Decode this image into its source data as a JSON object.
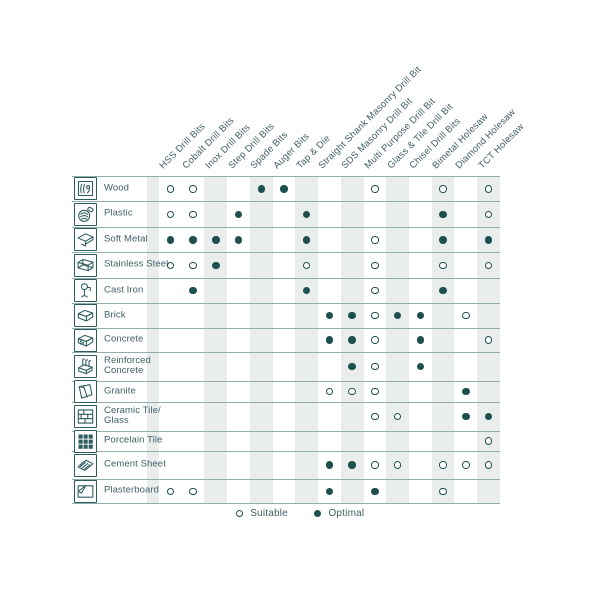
{
  "chart_data": {
    "type": "table",
    "title": "Drill bit / material compatibility matrix",
    "columns": [
      "HSS Drill Bits",
      "Cobalt Drill Bits",
      "Inox Drill Bits",
      "Step Drill Bits",
      "Spade Bits",
      "Auger Bits",
      "Tap & Die",
      "Straight Shank Masonry Drill Bit",
      "SDS Masonry Drill Bit",
      "Multi Purpose Drill Bit",
      "Glass & Tile Drill Bit",
      "Chisel Drill Bits",
      "Bimetal Holesaw",
      "Diamond Holesaw",
      "TCT Holesaw"
    ],
    "value_legend": {
      "S": "Suitable",
      "O": "Optimal",
      "": "none"
    },
    "rows": [
      {
        "material": "Wood",
        "icon": "wood-icon",
        "values": [
          "S",
          "S",
          "",
          "",
          "O",
          "O",
          "",
          "",
          "",
          "S",
          "",
          "",
          "S",
          "",
          "S"
        ]
      },
      {
        "material": "Plastic",
        "icon": "plastic-icon",
        "values": [
          "S",
          "S",
          "",
          "O",
          "",
          "",
          "O",
          "",
          "",
          "",
          "",
          "",
          "O",
          "",
          "S"
        ]
      },
      {
        "material": "Soft Metal",
        "icon": "soft-metal-icon",
        "values": [
          "O",
          "O",
          "O",
          "O",
          "",
          "",
          "O",
          "",
          "",
          "S",
          "",
          "",
          "O",
          "",
          "O"
        ]
      },
      {
        "material": "Stainless Steel",
        "icon": "stainless-steel-icon",
        "values": [
          "S",
          "S",
          "O",
          "",
          "",
          "",
          "S",
          "",
          "",
          "S",
          "",
          "",
          "S",
          "",
          "S"
        ]
      },
      {
        "material": "Cast Iron",
        "icon": "cast-iron-icon",
        "values": [
          "",
          "O",
          "",
          "",
          "",
          "",
          "O",
          "",
          "",
          "S",
          "",
          "",
          "O",
          "",
          ""
        ]
      },
      {
        "material": "Brick",
        "icon": "brick-icon",
        "values": [
          "",
          "",
          "",
          "",
          "",
          "",
          "",
          "O",
          "O",
          "S",
          "O",
          "O",
          "",
          "S",
          ""
        ]
      },
      {
        "material": "Concrete",
        "icon": "concrete-icon",
        "values": [
          "",
          "",
          "",
          "",
          "",
          "",
          "",
          "O",
          "O",
          "S",
          "",
          "O",
          "",
          "",
          "S"
        ]
      },
      {
        "material": "Reinforced\nConcrete",
        "icon": "reinforced-concrete-icon",
        "values": [
          "",
          "",
          "",
          "",
          "",
          "",
          "",
          "",
          "O",
          "S",
          "",
          "O",
          "",
          "",
          ""
        ]
      },
      {
        "material": "Granite",
        "icon": "granite-icon",
        "values": [
          "",
          "",
          "",
          "",
          "",
          "",
          "",
          "S",
          "S",
          "S",
          "",
          "",
          "",
          "O",
          ""
        ]
      },
      {
        "material": "Ceramic Tile/\nGlass",
        "icon": "ceramic-tile-icon",
        "values": [
          "",
          "",
          "",
          "",
          "",
          "",
          "",
          "",
          "",
          "S",
          "S",
          "",
          "",
          "O",
          "O"
        ]
      },
      {
        "material": "Porcelain Tile",
        "icon": "porcelain-tile-icon",
        "values": [
          "",
          "",
          "",
          "",
          "",
          "",
          "",
          "",
          "",
          "",
          "",
          "",
          "",
          "",
          "S"
        ]
      },
      {
        "material": "Cement Sheet",
        "icon": "cement-sheet-icon",
        "values": [
          "",
          "",
          "",
          "",
          "",
          "",
          "",
          "O",
          "O",
          "S",
          "S",
          "",
          "S",
          "S",
          "S"
        ]
      },
      {
        "material": "Plasterboard",
        "icon": "plasterboard-icon",
        "values": [
          "S",
          "S",
          "",
          "",
          "",
          "",
          "",
          "O",
          "",
          "O",
          "",
          "",
          "S",
          "",
          ""
        ]
      }
    ],
    "legend": [
      {
        "symbol": "suitable",
        "label": "Suitable"
      },
      {
        "symbol": "optimal",
        "label": "Optimal"
      }
    ]
  },
  "colors": {
    "marker": "#1d504f",
    "text": "#416067",
    "grid_line": "#92aeac",
    "column_stripe": "#e9edec",
    "icon_stroke": "#2d5c5f",
    "background": "#ffffff"
  }
}
